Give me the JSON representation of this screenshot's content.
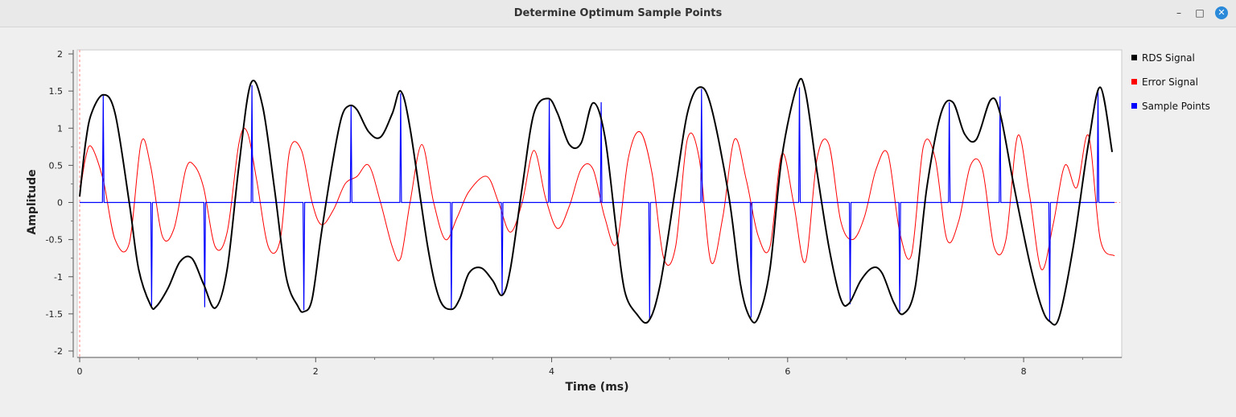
{
  "window": {
    "title": "Determine Optimum Sample Points",
    "minimize_glyph": "–",
    "maximize_glyph": "□",
    "close_glyph": "✕"
  },
  "chart_data": {
    "type": "line",
    "xlabel": "Time (ms)",
    "ylabel": "Amplitude",
    "xlim": [
      0,
      8.77
    ],
    "ylim": [
      -2,
      2
    ],
    "xticks": [
      0,
      2,
      4,
      6,
      8
    ],
    "yticks": [
      -2,
      -1.5,
      -1,
      -0.5,
      0,
      0.5,
      1,
      1.5,
      2
    ],
    "grid": false,
    "legend_position": "right",
    "series": [
      {
        "name": "RDS Signal",
        "color": "#000000",
        "x": [
          0,
          0.05,
          0.1,
          0.2,
          0.3,
          0.42,
          0.5,
          0.6,
          0.65,
          0.75,
          0.85,
          0.95,
          1.05,
          1.15,
          1.25,
          1.35,
          1.45,
          1.55,
          1.65,
          1.75,
          1.85,
          1.9,
          1.97,
          2.05,
          2.15,
          2.22,
          2.28,
          2.35,
          2.45,
          2.55,
          2.65,
          2.72,
          2.8,
          2.95,
          3.05,
          3.15,
          3.22,
          3.3,
          3.4,
          3.5,
          3.58,
          3.65,
          3.75,
          3.85,
          3.97,
          4.05,
          4.15,
          4.25,
          4.35,
          4.45,
          4.55,
          4.62,
          4.72,
          4.82,
          4.92,
          5.05,
          5.15,
          5.25,
          5.35,
          5.5,
          5.6,
          5.68,
          5.75,
          5.85,
          5.95,
          6.08,
          6.15,
          6.25,
          6.35,
          6.45,
          6.52,
          6.62,
          6.72,
          6.8,
          6.9,
          6.98,
          7.08,
          7.18,
          7.3,
          7.4,
          7.5,
          7.6,
          7.72,
          7.8,
          7.92,
          8.05,
          8.15,
          8.22,
          8.3,
          8.42,
          8.55,
          8.65,
          8.75
        ],
        "y": [
          0.08,
          0.8,
          1.2,
          1.45,
          1.2,
          0.0,
          -0.9,
          -1.38,
          -1.4,
          -1.15,
          -0.8,
          -0.75,
          -1.1,
          -1.42,
          -0.9,
          0.5,
          1.6,
          1.3,
          0.2,
          -1.0,
          -1.4,
          -1.47,
          -1.3,
          -0.4,
          0.6,
          1.15,
          1.3,
          1.25,
          0.95,
          0.88,
          1.2,
          1.5,
          1.0,
          -0.6,
          -1.3,
          -1.44,
          -1.3,
          -0.95,
          -0.88,
          -1.05,
          -1.25,
          -0.9,
          0.2,
          1.2,
          1.4,
          1.2,
          0.78,
          0.8,
          1.34,
          0.9,
          -0.4,
          -1.2,
          -1.5,
          -1.6,
          -1.1,
          0.2,
          1.2,
          1.55,
          1.3,
          0.1,
          -1.1,
          -1.55,
          -1.55,
          -0.9,
          0.6,
          1.57,
          1.5,
          0.4,
          -0.6,
          -1.3,
          -1.36,
          -1.05,
          -0.88,
          -0.95,
          -1.35,
          -1.5,
          -1.15,
          0.2,
          1.2,
          1.35,
          0.92,
          0.85,
          1.38,
          1.2,
          0.2,
          -0.8,
          -1.4,
          -1.6,
          -1.55,
          -0.6,
          0.8,
          1.55,
          0.68
        ]
      },
      {
        "name": "Error Signal",
        "color": "#ff0000",
        "x": [
          0,
          0.05,
          0.1,
          0.2,
          0.3,
          0.42,
          0.52,
          0.6,
          0.7,
          0.8,
          0.9,
          0.97,
          1.05,
          1.15,
          1.25,
          1.35,
          1.42,
          1.5,
          1.6,
          1.7,
          1.78,
          1.88,
          1.97,
          2.05,
          2.15,
          2.25,
          2.35,
          2.45,
          2.55,
          2.65,
          2.72,
          2.8,
          2.9,
          3.0,
          3.1,
          3.2,
          3.3,
          3.45,
          3.55,
          3.65,
          3.75,
          3.85,
          3.95,
          4.05,
          4.15,
          4.25,
          4.35,
          4.45,
          4.55,
          4.65,
          4.75,
          4.85,
          4.95,
          5.05,
          5.15,
          5.25,
          5.35,
          5.45,
          5.55,
          5.65,
          5.75,
          5.85,
          5.95,
          6.05,
          6.15,
          6.25,
          6.35,
          6.45,
          6.55,
          6.65,
          6.75,
          6.85,
          6.95,
          7.05,
          7.15,
          7.25,
          7.35,
          7.45,
          7.55,
          7.65,
          7.75,
          7.85,
          7.95,
          8.05,
          8.15,
          8.25,
          8.35,
          8.45,
          8.55,
          8.65,
          8.77
        ],
        "y": [
          0.1,
          0.6,
          0.75,
          0.3,
          -0.5,
          -0.55,
          0.8,
          0.5,
          -0.45,
          -0.35,
          0.45,
          0.5,
          0.2,
          -0.6,
          -0.4,
          0.8,
          0.95,
          0.3,
          -0.6,
          -0.5,
          0.7,
          0.7,
          0.0,
          -0.3,
          -0.1,
          0.25,
          0.35,
          0.5,
          0.0,
          -0.6,
          -0.75,
          0.0,
          0.78,
          0.0,
          -0.5,
          -0.2,
          0.15,
          0.35,
          0.0,
          -0.4,
          0.0,
          0.7,
          0.05,
          -0.35,
          -0.05,
          0.45,
          0.45,
          -0.2,
          -0.55,
          0.6,
          0.95,
          0.4,
          -0.75,
          -0.6,
          0.85,
          0.6,
          -0.8,
          -0.2,
          0.85,
          0.3,
          -0.45,
          -0.6,
          0.65,
          0.0,
          -0.8,
          0.6,
          0.78,
          -0.25,
          -0.5,
          -0.2,
          0.45,
          0.65,
          -0.4,
          -0.7,
          0.75,
          0.6,
          -0.5,
          -0.25,
          0.5,
          0.45,
          -0.6,
          -0.5,
          0.9,
          0.1,
          -0.9,
          -0.3,
          0.5,
          0.2,
          0.9,
          -0.5,
          -0.72
        ]
      },
      {
        "name": "Sample Points",
        "color": "#0000ff",
        "baseline": 0,
        "samples": [
          {
            "x": 0.2,
            "y": 1.44
          },
          {
            "x": 0.61,
            "y": -1.4
          },
          {
            "x": 1.06,
            "y": -1.41
          },
          {
            "x": 1.46,
            "y": 1.58
          },
          {
            "x": 1.9,
            "y": -1.45
          },
          {
            "x": 2.3,
            "y": 1.3
          },
          {
            "x": 2.72,
            "y": 1.47
          },
          {
            "x": 3.15,
            "y": -1.43
          },
          {
            "x": 3.58,
            "y": -1.25
          },
          {
            "x": 3.98,
            "y": 1.38
          },
          {
            "x": 4.42,
            "y": 1.35
          },
          {
            "x": 4.83,
            "y": -1.58
          },
          {
            "x": 5.27,
            "y": 1.53
          },
          {
            "x": 5.69,
            "y": -1.55
          },
          {
            "x": 6.1,
            "y": 1.55
          },
          {
            "x": 6.53,
            "y": -1.37
          },
          {
            "x": 6.95,
            "y": -1.47
          },
          {
            "x": 7.37,
            "y": 1.35
          },
          {
            "x": 7.8,
            "y": 1.43
          },
          {
            "x": 8.22,
            "y": -1.6
          },
          {
            "x": 8.63,
            "y": 1.52
          }
        ]
      }
    ]
  }
}
